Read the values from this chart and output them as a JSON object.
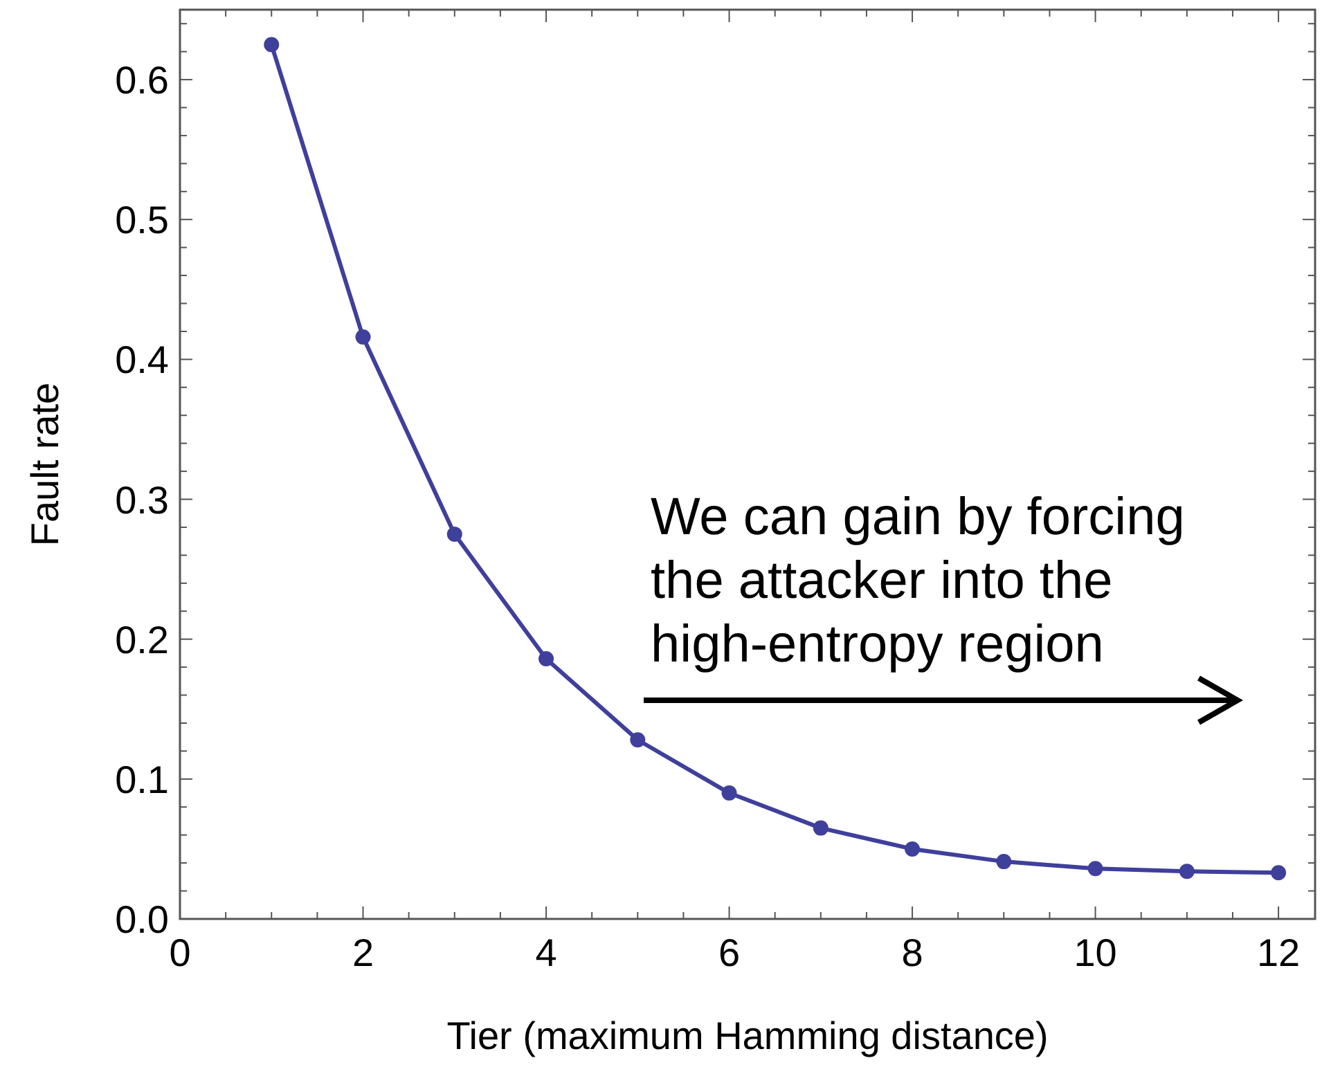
{
  "chart_data": {
    "type": "line",
    "xlabel": "Tier (maximum Hamming distance)",
    "ylabel": "Fault rate",
    "x": [
      1,
      2,
      3,
      4,
      5,
      6,
      7,
      8,
      9,
      10,
      11,
      12
    ],
    "series": [
      {
        "color": "#3f3f9c",
        "values": [
          0.625,
          0.416,
          0.275,
          0.186,
          0.128,
          0.09,
          0.065,
          0.05,
          0.041,
          0.036,
          0.034,
          0.033
        ]
      }
    ],
    "xlim": [
      0,
      12.4
    ],
    "ylim": [
      0,
      0.65
    ],
    "xticks": [
      0,
      {
        "value": 0.5,
        "label": null
      },
      {
        "value": 1,
        "label": null
      },
      {
        "value": 1.5,
        "label": null
      },
      2,
      {
        "value": 2.5,
        "label": null
      },
      {
        "value": 3,
        "label": null
      },
      {
        "value": 3.5,
        "label": null
      },
      4,
      {
        "value": 4.5,
        "label": null
      },
      {
        "value": 5,
        "label": null
      },
      {
        "value": 5.5,
        "label": null
      },
      6,
      {
        "value": 6.5,
        "label": null
      },
      {
        "value": 7,
        "label": null
      },
      {
        "value": 7.5,
        "label": null
      },
      8,
      {
        "value": 8.5,
        "label": null
      },
      {
        "value": 9,
        "label": null
      },
      {
        "value": 9.5,
        "label": null
      },
      10,
      {
        "value": 10.5,
        "label": null
      },
      {
        "value": 11,
        "label": null
      },
      {
        "value": 11.5,
        "label": null
      },
      12
    ],
    "yticks": [
      {
        "value": 0,
        "label": "0.0"
      },
      {
        "value": 0.02,
        "label": null
      },
      {
        "value": 0.04,
        "label": null
      },
      {
        "value": 0.06,
        "label": null
      },
      {
        "value": 0.08,
        "label": null
      },
      0.1,
      {
        "value": 0.12,
        "label": null
      },
      {
        "value": 0.14,
        "label": null
      },
      {
        "value": 0.16,
        "label": null
      },
      {
        "value": 0.18,
        "label": null
      },
      0.2,
      {
        "value": 0.22,
        "label": null
      },
      {
        "value": 0.24,
        "label": null
      },
      {
        "value": 0.26,
        "label": null
      },
      {
        "value": 0.28,
        "label": null
      },
      0.3,
      {
        "value": 0.32,
        "label": null
      },
      {
        "value": 0.34,
        "label": null
      },
      {
        "value": 0.36,
        "label": null
      },
      {
        "value": 0.38,
        "label": null
      },
      0.4,
      {
        "value": 0.42,
        "label": null
      },
      {
        "value": 0.44,
        "label": null
      },
      {
        "value": 0.46,
        "label": null
      },
      {
        "value": 0.48,
        "label": null
      },
      0.5,
      {
        "value": 0.52,
        "label": null
      },
      {
        "value": 0.54,
        "label": null
      },
      {
        "value": 0.56,
        "label": null
      },
      {
        "value": 0.58,
        "label": null
      },
      0.6,
      {
        "value": 0.62,
        "label": null
      },
      {
        "value": 0.64,
        "label": null
      }
    ],
    "marker": "circle",
    "line_style": "solid",
    "annotations": [
      "We can gain by forcing\nthe attacker into the\nhigh-entropy region"
    ]
  }
}
